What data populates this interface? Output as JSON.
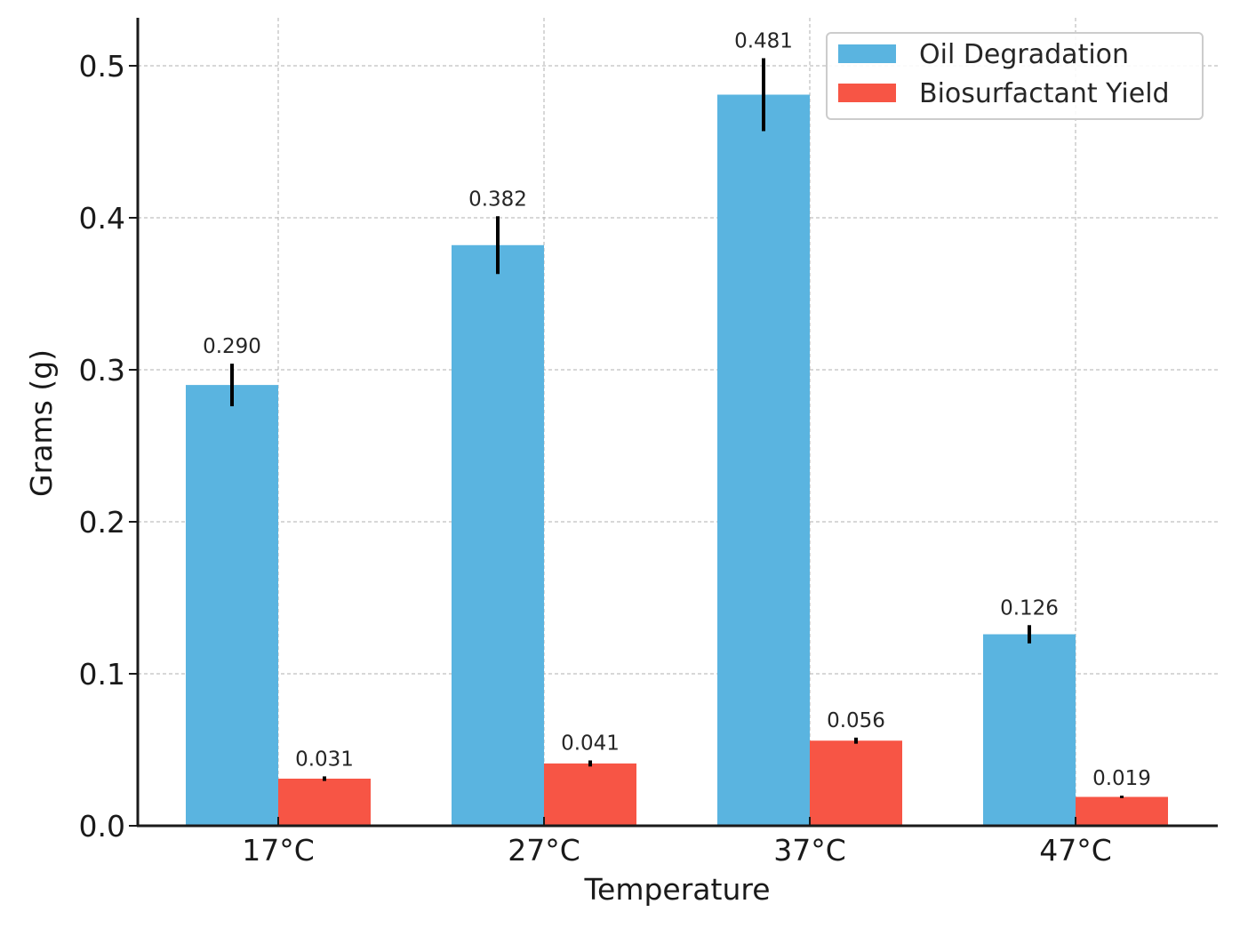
{
  "chart_data": {
    "type": "bar",
    "title": "",
    "xlabel": "Temperature",
    "ylabel": "Grams (g)",
    "categories": [
      "17°C",
      "27°C",
      "37°C",
      "47°C"
    ],
    "ylim": [
      0,
      0.53
    ],
    "yticks": [
      0.0,
      0.1,
      0.2,
      0.3,
      0.4,
      0.5
    ],
    "ytick_labels": [
      "0.0",
      "0.1",
      "0.2",
      "0.3",
      "0.4",
      "0.5"
    ],
    "grid": true,
    "legend_position": "top-right",
    "series": [
      {
        "name": "Oil Degradation",
        "color": "#5ab4e0",
        "values": [
          0.29,
          0.382,
          0.481,
          0.126
        ],
        "errors": [
          0.014,
          0.019,
          0.024,
          0.006
        ],
        "labels": [
          "0.290",
          "0.382",
          "0.481",
          "0.126"
        ]
      },
      {
        "name": "Biosurfactant Yield",
        "color": "#f75545",
        "values": [
          0.031,
          0.041,
          0.056,
          0.019
        ],
        "errors": [
          0.0015,
          0.002,
          0.002,
          0.0008
        ],
        "labels": [
          "0.031",
          "0.041",
          "0.056",
          "0.019"
        ]
      }
    ]
  }
}
